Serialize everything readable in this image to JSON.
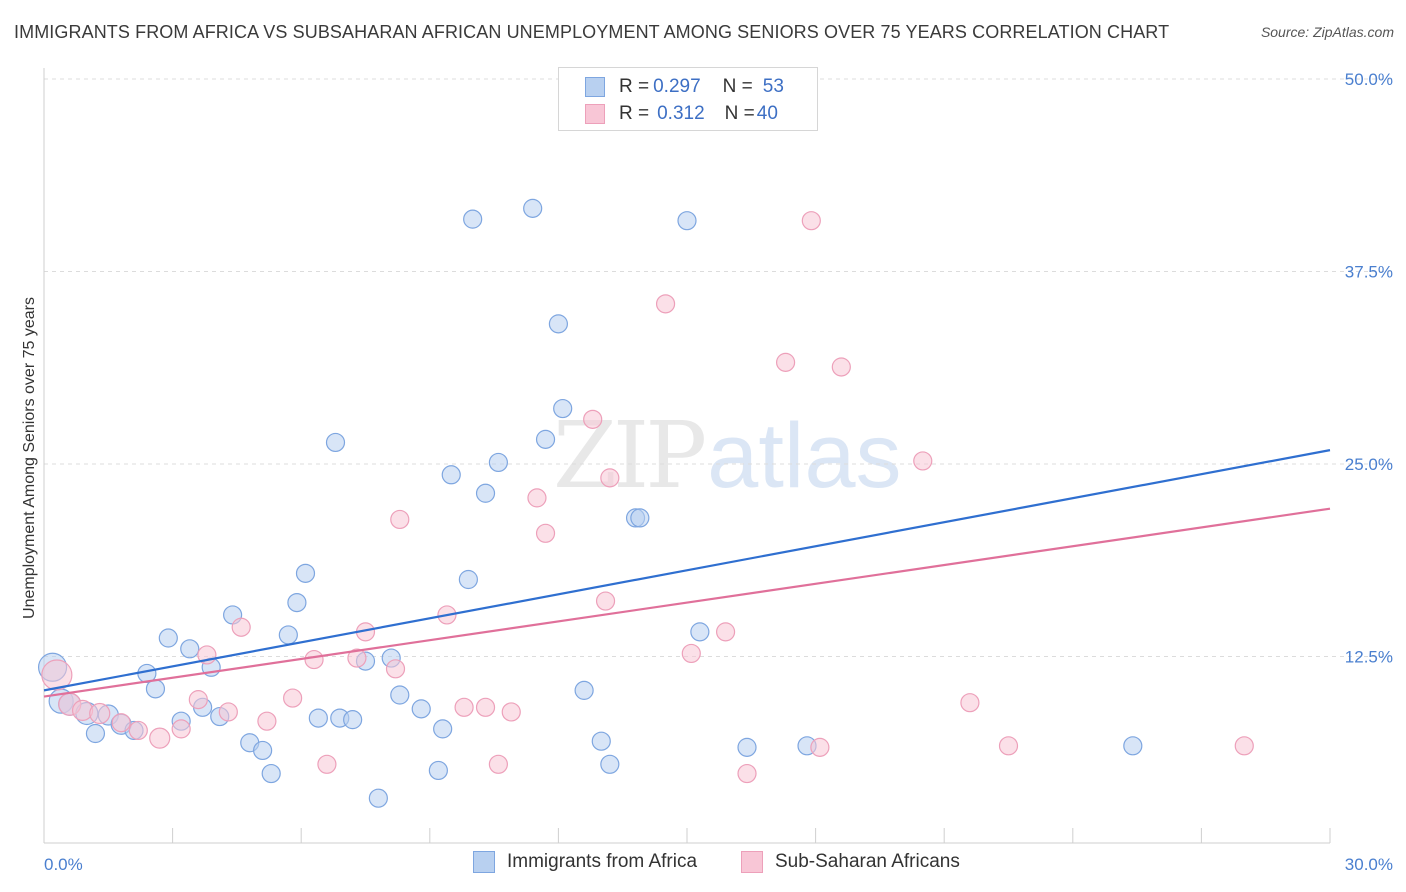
{
  "title": "IMMIGRANTS FROM AFRICA VS SUBSAHARAN AFRICAN UNEMPLOYMENT AMONG SENIORS OVER 75 YEARS CORRELATION CHART",
  "source": "Source: ZipAtlas.com",
  "watermark": {
    "part1": "ZIP",
    "part2": "atlas"
  },
  "legend": {
    "rows": [
      {
        "r_label": "R = ",
        "r_value": "0.297",
        "n_label": "N = ",
        "n_value": "53"
      },
      {
        "r_label": "R = ",
        "r_value": "0.312",
        "n_label": "N = ",
        "n_value": "40"
      }
    ]
  },
  "bottom_legend": [
    "Immigrants from Africa",
    "Sub-Saharan Africans"
  ],
  "colors": {
    "blue_fill": "#b8d0f0",
    "blue_stroke": "#7ea6e0",
    "blue_line": "#2f6fd0",
    "pink_fill": "#f8c6d6",
    "pink_stroke": "#eda0ba",
    "pink_line": "#e0709a",
    "grid": "#dcdcdc",
    "axis_text": "#4a7fcf"
  },
  "chart_data": {
    "type": "scatter",
    "title": "IMMIGRANTS FROM AFRICA VS SUBSAHARAN AFRICAN UNEMPLOYMENT AMONG SENIORS OVER 75 YEARS CORRELATION CHART",
    "xlabel": "",
    "ylabel": "Unemployment Among Seniors over 75 years",
    "xlim": [
      0,
      30
    ],
    "ylim": [
      0,
      50
    ],
    "x_tick_labels": [
      {
        "value": 0,
        "label": "0.0%"
      },
      {
        "value": 30,
        "label": "30.0%"
      }
    ],
    "y_tick_labels": [
      {
        "value": 12.5,
        "label": "12.5%"
      },
      {
        "value": 25,
        "label": "25.0%"
      },
      {
        "value": 37.5,
        "label": "37.5%"
      },
      {
        "value": 50,
        "label": "50.0%"
      }
    ],
    "x_minor_ticks": [
      3,
      6,
      9,
      12,
      15,
      18,
      21,
      24,
      27,
      30
    ],
    "series": [
      {
        "name": "Immigrants from Africa",
        "color": "blue",
        "R": 0.297,
        "N": 53,
        "trend": {
          "x": [
            0,
            30
          ],
          "y": [
            10.3,
            25.9
          ]
        },
        "points": [
          {
            "x": 0.2,
            "y": 11.8,
            "s": 14
          },
          {
            "x": 0.4,
            "y": 9.6,
            "s": 12
          },
          {
            "x": 0.6,
            "y": 9.4,
            "s": 11
          },
          {
            "x": 1.0,
            "y": 8.8,
            "s": 11
          },
          {
            "x": 1.5,
            "y": 8.7,
            "s": 10
          },
          {
            "x": 1.8,
            "y": 8.1,
            "s": 10
          },
          {
            "x": 2.1,
            "y": 7.7,
            "s": 9
          },
          {
            "x": 2.4,
            "y": 11.4,
            "s": 9
          },
          {
            "x": 2.6,
            "y": 10.4,
            "s": 9
          },
          {
            "x": 2.9,
            "y": 13.7,
            "s": 9
          },
          {
            "x": 3.2,
            "y": 8.3,
            "s": 9
          },
          {
            "x": 3.4,
            "y": 13.0,
            "s": 9
          },
          {
            "x": 3.7,
            "y": 9.2,
            "s": 9
          },
          {
            "x": 3.9,
            "y": 11.8,
            "s": 9
          },
          {
            "x": 4.1,
            "y": 8.6,
            "s": 9
          },
          {
            "x": 4.4,
            "y": 15.2,
            "s": 9
          },
          {
            "x": 4.8,
            "y": 6.9,
            "s": 9
          },
          {
            "x": 5.1,
            "y": 6.4,
            "s": 9
          },
          {
            "x": 5.3,
            "y": 4.9,
            "s": 9
          },
          {
            "x": 5.7,
            "y": 13.9,
            "s": 9
          },
          {
            "x": 5.9,
            "y": 16.0,
            "s": 9
          },
          {
            "x": 6.1,
            "y": 17.9,
            "s": 9
          },
          {
            "x": 6.4,
            "y": 8.5,
            "s": 9
          },
          {
            "x": 6.8,
            "y": 26.4,
            "s": 9
          },
          {
            "x": 6.9,
            "y": 8.5,
            "s": 9
          },
          {
            "x": 7.2,
            "y": 8.4,
            "s": 9
          },
          {
            "x": 7.5,
            "y": 12.2,
            "s": 9
          },
          {
            "x": 7.8,
            "y": 3.3,
            "s": 9
          },
          {
            "x": 8.1,
            "y": 12.4,
            "s": 9
          },
          {
            "x": 8.3,
            "y": 10.0,
            "s": 9
          },
          {
            "x": 8.8,
            "y": 9.1,
            "s": 9
          },
          {
            "x": 9.2,
            "y": 5.1,
            "s": 9
          },
          {
            "x": 9.3,
            "y": 7.8,
            "s": 9
          },
          {
            "x": 9.5,
            "y": 24.3,
            "s": 9
          },
          {
            "x": 9.9,
            "y": 17.5,
            "s": 9
          },
          {
            "x": 10.0,
            "y": 40.9,
            "s": 9
          },
          {
            "x": 10.3,
            "y": 23.1,
            "s": 9
          },
          {
            "x": 10.6,
            "y": 25.1,
            "s": 9
          },
          {
            "x": 11.4,
            "y": 41.6,
            "s": 9
          },
          {
            "x": 11.7,
            "y": 26.6,
            "s": 9
          },
          {
            "x": 12.0,
            "y": 34.1,
            "s": 9
          },
          {
            "x": 12.1,
            "y": 28.6,
            "s": 9
          },
          {
            "x": 12.6,
            "y": 10.3,
            "s": 9
          },
          {
            "x": 13.0,
            "y": 7.0,
            "s": 9
          },
          {
            "x": 13.2,
            "y": 5.5,
            "s": 9
          },
          {
            "x": 13.8,
            "y": 21.5,
            "s": 9
          },
          {
            "x": 13.9,
            "y": 21.5,
            "s": 9
          },
          {
            "x": 15.0,
            "y": 40.8,
            "s": 9
          },
          {
            "x": 15.3,
            "y": 14.1,
            "s": 9
          },
          {
            "x": 16.4,
            "y": 6.6,
            "s": 9
          },
          {
            "x": 17.8,
            "y": 6.7,
            "s": 9
          },
          {
            "x": 25.4,
            "y": 6.7,
            "s": 9
          },
          {
            "x": 1.2,
            "y": 7.5,
            "s": 9
          }
        ]
      },
      {
        "name": "Sub-Saharan Africans",
        "color": "pink",
        "R": 0.312,
        "N": 40,
        "trend": {
          "x": [
            0,
            30
          ],
          "y": [
            9.9,
            22.1
          ]
        },
        "points": [
          {
            "x": 0.3,
            "y": 11.3,
            "s": 15
          },
          {
            "x": 0.6,
            "y": 9.4,
            "s": 11
          },
          {
            "x": 0.9,
            "y": 9.0,
            "s": 10
          },
          {
            "x": 1.3,
            "y": 8.8,
            "s": 10
          },
          {
            "x": 1.8,
            "y": 8.2,
            "s": 9
          },
          {
            "x": 2.2,
            "y": 7.7,
            "s": 9
          },
          {
            "x": 2.7,
            "y": 7.2,
            "s": 10
          },
          {
            "x": 3.2,
            "y": 7.8,
            "s": 9
          },
          {
            "x": 3.6,
            "y": 9.7,
            "s": 9
          },
          {
            "x": 3.8,
            "y": 12.6,
            "s": 9
          },
          {
            "x": 4.3,
            "y": 8.9,
            "s": 9
          },
          {
            "x": 4.6,
            "y": 14.4,
            "s": 9
          },
          {
            "x": 5.2,
            "y": 8.3,
            "s": 9
          },
          {
            "x": 5.8,
            "y": 9.8,
            "s": 9
          },
          {
            "x": 6.3,
            "y": 12.3,
            "s": 9
          },
          {
            "x": 6.6,
            "y": 5.5,
            "s": 9
          },
          {
            "x": 7.3,
            "y": 12.4,
            "s": 9
          },
          {
            "x": 7.5,
            "y": 14.1,
            "s": 9
          },
          {
            "x": 8.2,
            "y": 11.7,
            "s": 9
          },
          {
            "x": 8.3,
            "y": 21.4,
            "s": 9
          },
          {
            "x": 9.4,
            "y": 15.2,
            "s": 9
          },
          {
            "x": 9.8,
            "y": 9.2,
            "s": 9
          },
          {
            "x": 10.3,
            "y": 9.2,
            "s": 9
          },
          {
            "x": 10.6,
            "y": 5.5,
            "s": 9
          },
          {
            "x": 10.9,
            "y": 8.9,
            "s": 9
          },
          {
            "x": 11.5,
            "y": 22.8,
            "s": 9
          },
          {
            "x": 11.7,
            "y": 20.5,
            "s": 9
          },
          {
            "x": 12.8,
            "y": 27.9,
            "s": 9
          },
          {
            "x": 13.1,
            "y": 16.1,
            "s": 9
          },
          {
            "x": 13.2,
            "y": 24.1,
            "s": 9
          },
          {
            "x": 14.5,
            "y": 35.4,
            "s": 9
          },
          {
            "x": 15.1,
            "y": 12.7,
            "s": 9
          },
          {
            "x": 15.9,
            "y": 14.1,
            "s": 9
          },
          {
            "x": 16.4,
            "y": 4.9,
            "s": 9
          },
          {
            "x": 17.3,
            "y": 31.6,
            "s": 9
          },
          {
            "x": 17.9,
            "y": 40.8,
            "s": 9
          },
          {
            "x": 18.1,
            "y": 6.6,
            "s": 9
          },
          {
            "x": 18.6,
            "y": 31.3,
            "s": 9
          },
          {
            "x": 20.5,
            "y": 25.2,
            "s": 9
          },
          {
            "x": 21.6,
            "y": 9.5,
            "s": 9
          }
        ]
      }
    ],
    "extra_pink_points": [
      {
        "x": 22.5,
        "y": 6.7,
        "s": 9
      },
      {
        "x": 28.0,
        "y": 6.7,
        "s": 9
      }
    ]
  }
}
